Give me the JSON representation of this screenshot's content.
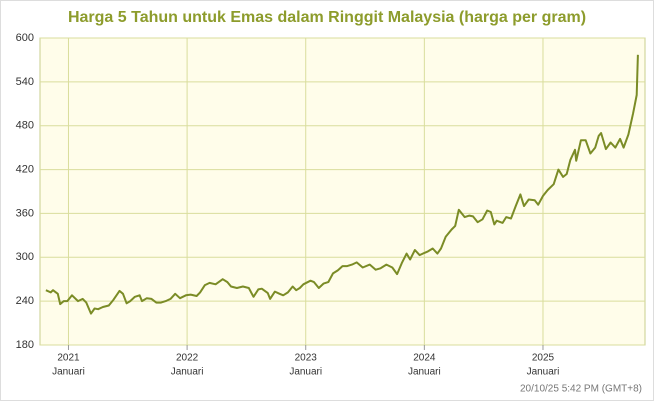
{
  "chart_data": {
    "type": "line",
    "title": "Harga 5 Tahun untuk Emas dalam Ringgit Malaysia (harga per gram)",
    "footer": "20/10/25 5:42 PM (GMT+8)",
    "x": [
      2020.81,
      2020.85,
      2020.87,
      2020.91,
      2020.93,
      2020.96,
      2020.99,
      2021.03,
      2021.08,
      2021.12,
      2021.15,
      2021.19,
      2021.22,
      2021.25,
      2021.29,
      2021.34,
      2021.38,
      2021.43,
      2021.46,
      2021.49,
      2021.52,
      2021.56,
      2021.6,
      2021.62,
      2021.66,
      2021.7,
      2021.74,
      2021.78,
      2021.82,
      2021.86,
      2021.9,
      2021.94,
      2021.99,
      2022.03,
      2022.08,
      2022.11,
      2022.15,
      2022.19,
      2022.24,
      2022.3,
      2022.34,
      2022.37,
      2022.42,
      2022.47,
      2022.52,
      2022.56,
      2022.6,
      2022.63,
      2022.68,
      2022.7,
      2022.74,
      2022.78,
      2022.81,
      2022.85,
      2022.89,
      2022.92,
      2022.95,
      2022.98,
      2023.04,
      2023.07,
      2023.11,
      2023.15,
      2023.19,
      2023.23,
      2023.27,
      2023.31,
      2023.35,
      2023.39,
      2023.43,
      2023.48,
      2023.54,
      2023.59,
      2023.63,
      2023.68,
      2023.73,
      2023.77,
      2023.81,
      2023.85,
      2023.88,
      2023.92,
      2023.96,
      2024.0,
      2024.03,
      2024.07,
      2024.11,
      2024.14,
      2024.18,
      2024.23,
      2024.26,
      2024.29,
      2024.34,
      2024.38,
      2024.41,
      2024.45,
      2024.49,
      2024.53,
      2024.56,
      2024.59,
      2024.61,
      2024.66,
      2024.69,
      2024.73,
      2024.77,
      2024.81,
      2024.84,
      2024.88,
      2024.93,
      2024.96,
      2025.0,
      2025.04,
      2025.09,
      2025.13,
      2025.17,
      2025.2,
      2025.23,
      2025.27,
      2025.28,
      2025.32,
      2025.36,
      2025.4,
      2025.44,
      2025.47,
      2025.49,
      2025.53,
      2025.57,
      2025.61,
      2025.65,
      2025.68,
      2025.72,
      2025.76,
      2025.79,
      2025.8
    ],
    "series": [
      {
        "color": "#7b8c26",
        "values": [
          255,
          252,
          255,
          250,
          236,
          240,
          240,
          248,
          240,
          243,
          238,
          223,
          230,
          229,
          232,
          234,
          242,
          254,
          250,
          237,
          240,
          246,
          248,
          240,
          244,
          243,
          238,
          238,
          240,
          243,
          250,
          244,
          248,
          249,
          247,
          252,
          262,
          265,
          263,
          270,
          266,
          260,
          258,
          260,
          258,
          246,
          256,
          257,
          251,
          243,
          253,
          250,
          248,
          252,
          260,
          255,
          258,
          263,
          268,
          266,
          258,
          264,
          266,
          278,
          282,
          288,
          288,
          290,
          293,
          286,
          290,
          283,
          285,
          290,
          286,
          277,
          292,
          305,
          297,
          310,
          303,
          306,
          308,
          312,
          305,
          312,
          328,
          338,
          343,
          365,
          355,
          357,
          356,
          348,
          352,
          364,
          362,
          345,
          350,
          347,
          355,
          353,
          370,
          386,
          370,
          379,
          378,
          372,
          384,
          392,
          400,
          420,
          410,
          414,
          433,
          447,
          432,
          460,
          460,
          442,
          450,
          466,
          470,
          448,
          457,
          450,
          462,
          450,
          468,
          497,
          522,
          577
        ]
      }
    ],
    "xlim": [
      2020.76,
      2025.86
    ],
    "ylim": [
      180,
      600
    ],
    "xticks": [
      {
        "value": 2021,
        "label": "2021",
        "sublabel": "Januari"
      },
      {
        "value": 2022,
        "label": "2022",
        "sublabel": "Januari"
      },
      {
        "value": 2023,
        "label": "2023",
        "sublabel": "Januari"
      },
      {
        "value": 2024,
        "label": "2024",
        "sublabel": "Januari"
      },
      {
        "value": 2025,
        "label": "2025",
        "sublabel": "Januari"
      }
    ],
    "yticks": [
      180,
      240,
      300,
      360,
      420,
      480,
      540,
      600
    ],
    "grid": true
  }
}
